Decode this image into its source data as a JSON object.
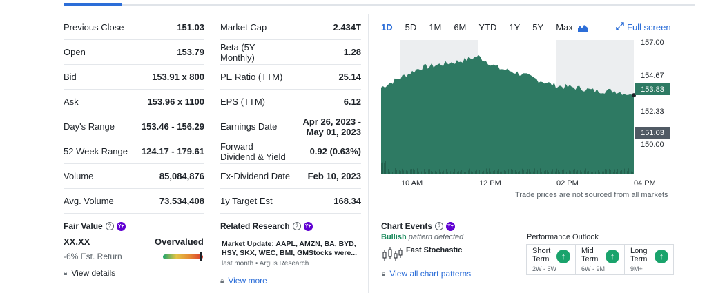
{
  "stats_left": [
    {
      "label": "Previous Close",
      "value": "151.03"
    },
    {
      "label": "Open",
      "value": "153.79"
    },
    {
      "label": "Bid",
      "value": "153.91 x 800"
    },
    {
      "label": "Ask",
      "value": "153.96 x 1100"
    },
    {
      "label": "Day's Range",
      "value": "153.46 - 156.29"
    },
    {
      "label": "52 Week Range",
      "value": "124.17 - 179.61"
    },
    {
      "label": "Volume",
      "value": "85,084,876"
    },
    {
      "label": "Avg. Volume",
      "value": "73,534,408"
    }
  ],
  "stats_right": [
    {
      "label": "Market Cap",
      "value": "2.434T"
    },
    {
      "label": "Beta (5Y Monthly)",
      "value": "1.28"
    },
    {
      "label": "PE Ratio (TTM)",
      "value": "25.14"
    },
    {
      "label": "EPS (TTM)",
      "value": "6.12"
    },
    {
      "label": "Earnings Date",
      "value": "Apr 26, 2023 - May 01, 2023"
    },
    {
      "label": "Forward Dividend & Yield",
      "value": "0.92 (0.63%)"
    },
    {
      "label": "Ex-Dividend Date",
      "value": "Feb 10, 2023"
    },
    {
      "label": "1y Target Est",
      "value": "168.34"
    }
  ],
  "chart_tabs": [
    "1D",
    "5D",
    "1M",
    "6M",
    "YTD",
    "1Y",
    "5Y",
    "Max"
  ],
  "active_tab": "1D",
  "fullscreen_label": "Full screen",
  "chart": {
    "y_ticks": [
      "157.00",
      "154.67",
      "152.33",
      "150.00"
    ],
    "x_ticks": [
      "10 AM",
      "12 PM",
      "02 PM",
      "04 PM"
    ],
    "current_price": "153.83",
    "previous_close": "151.03",
    "disclaimer": "Trade prices are not sourced from all markets"
  },
  "chart_data": {
    "type": "area",
    "x": [
      "09:30",
      "10:00",
      "10:30",
      "11:00",
      "11:30",
      "12:00",
      "12:30",
      "13:00",
      "13:30",
      "14:00",
      "14:30",
      "15:00",
      "15:30",
      "16:00"
    ],
    "y": [
      154.3,
      154.9,
      155.5,
      155.7,
      155.9,
      156.2,
      155.5,
      155.2,
      154.8,
      154.4,
      154.3,
      154.1,
      154.1,
      153.83
    ],
    "ylim": [
      149,
      157.2
    ],
    "colors": {
      "area": "#2e7a63",
      "shade": "#eceef0"
    }
  },
  "fair_value": {
    "title": "Fair Value",
    "value": "XX.XX",
    "verdict": "Overvalued",
    "est_return": "-6% Est. Return",
    "link": "View details"
  },
  "related_research": {
    "title": "Related Research",
    "headline": "Market Update: AAPL, AMZN, BA, BYD, HSY, SKX, WEC, BMI, GMStocks were...",
    "meta": "last month • Argus Research",
    "link": "View more"
  },
  "chart_events": {
    "title": "Chart Events",
    "bullish": "Bullish",
    "detected": "pattern detected",
    "pattern": "Fast Stochastic",
    "link": "View all chart patterns"
  },
  "performance": {
    "title": "Performance Outlook",
    "items": [
      {
        "name": "Short Term",
        "period": "2W - 6W"
      },
      {
        "name": "Mid Term",
        "period": "6W - 9M"
      },
      {
        "name": "Long Term",
        "period": "9M+"
      }
    ]
  },
  "colors": {
    "accent": "#2c6ed8",
    "up_green": "#1aa36c",
    "chart_green": "#2e7a63",
    "premium_purple": "#6001d2"
  }
}
